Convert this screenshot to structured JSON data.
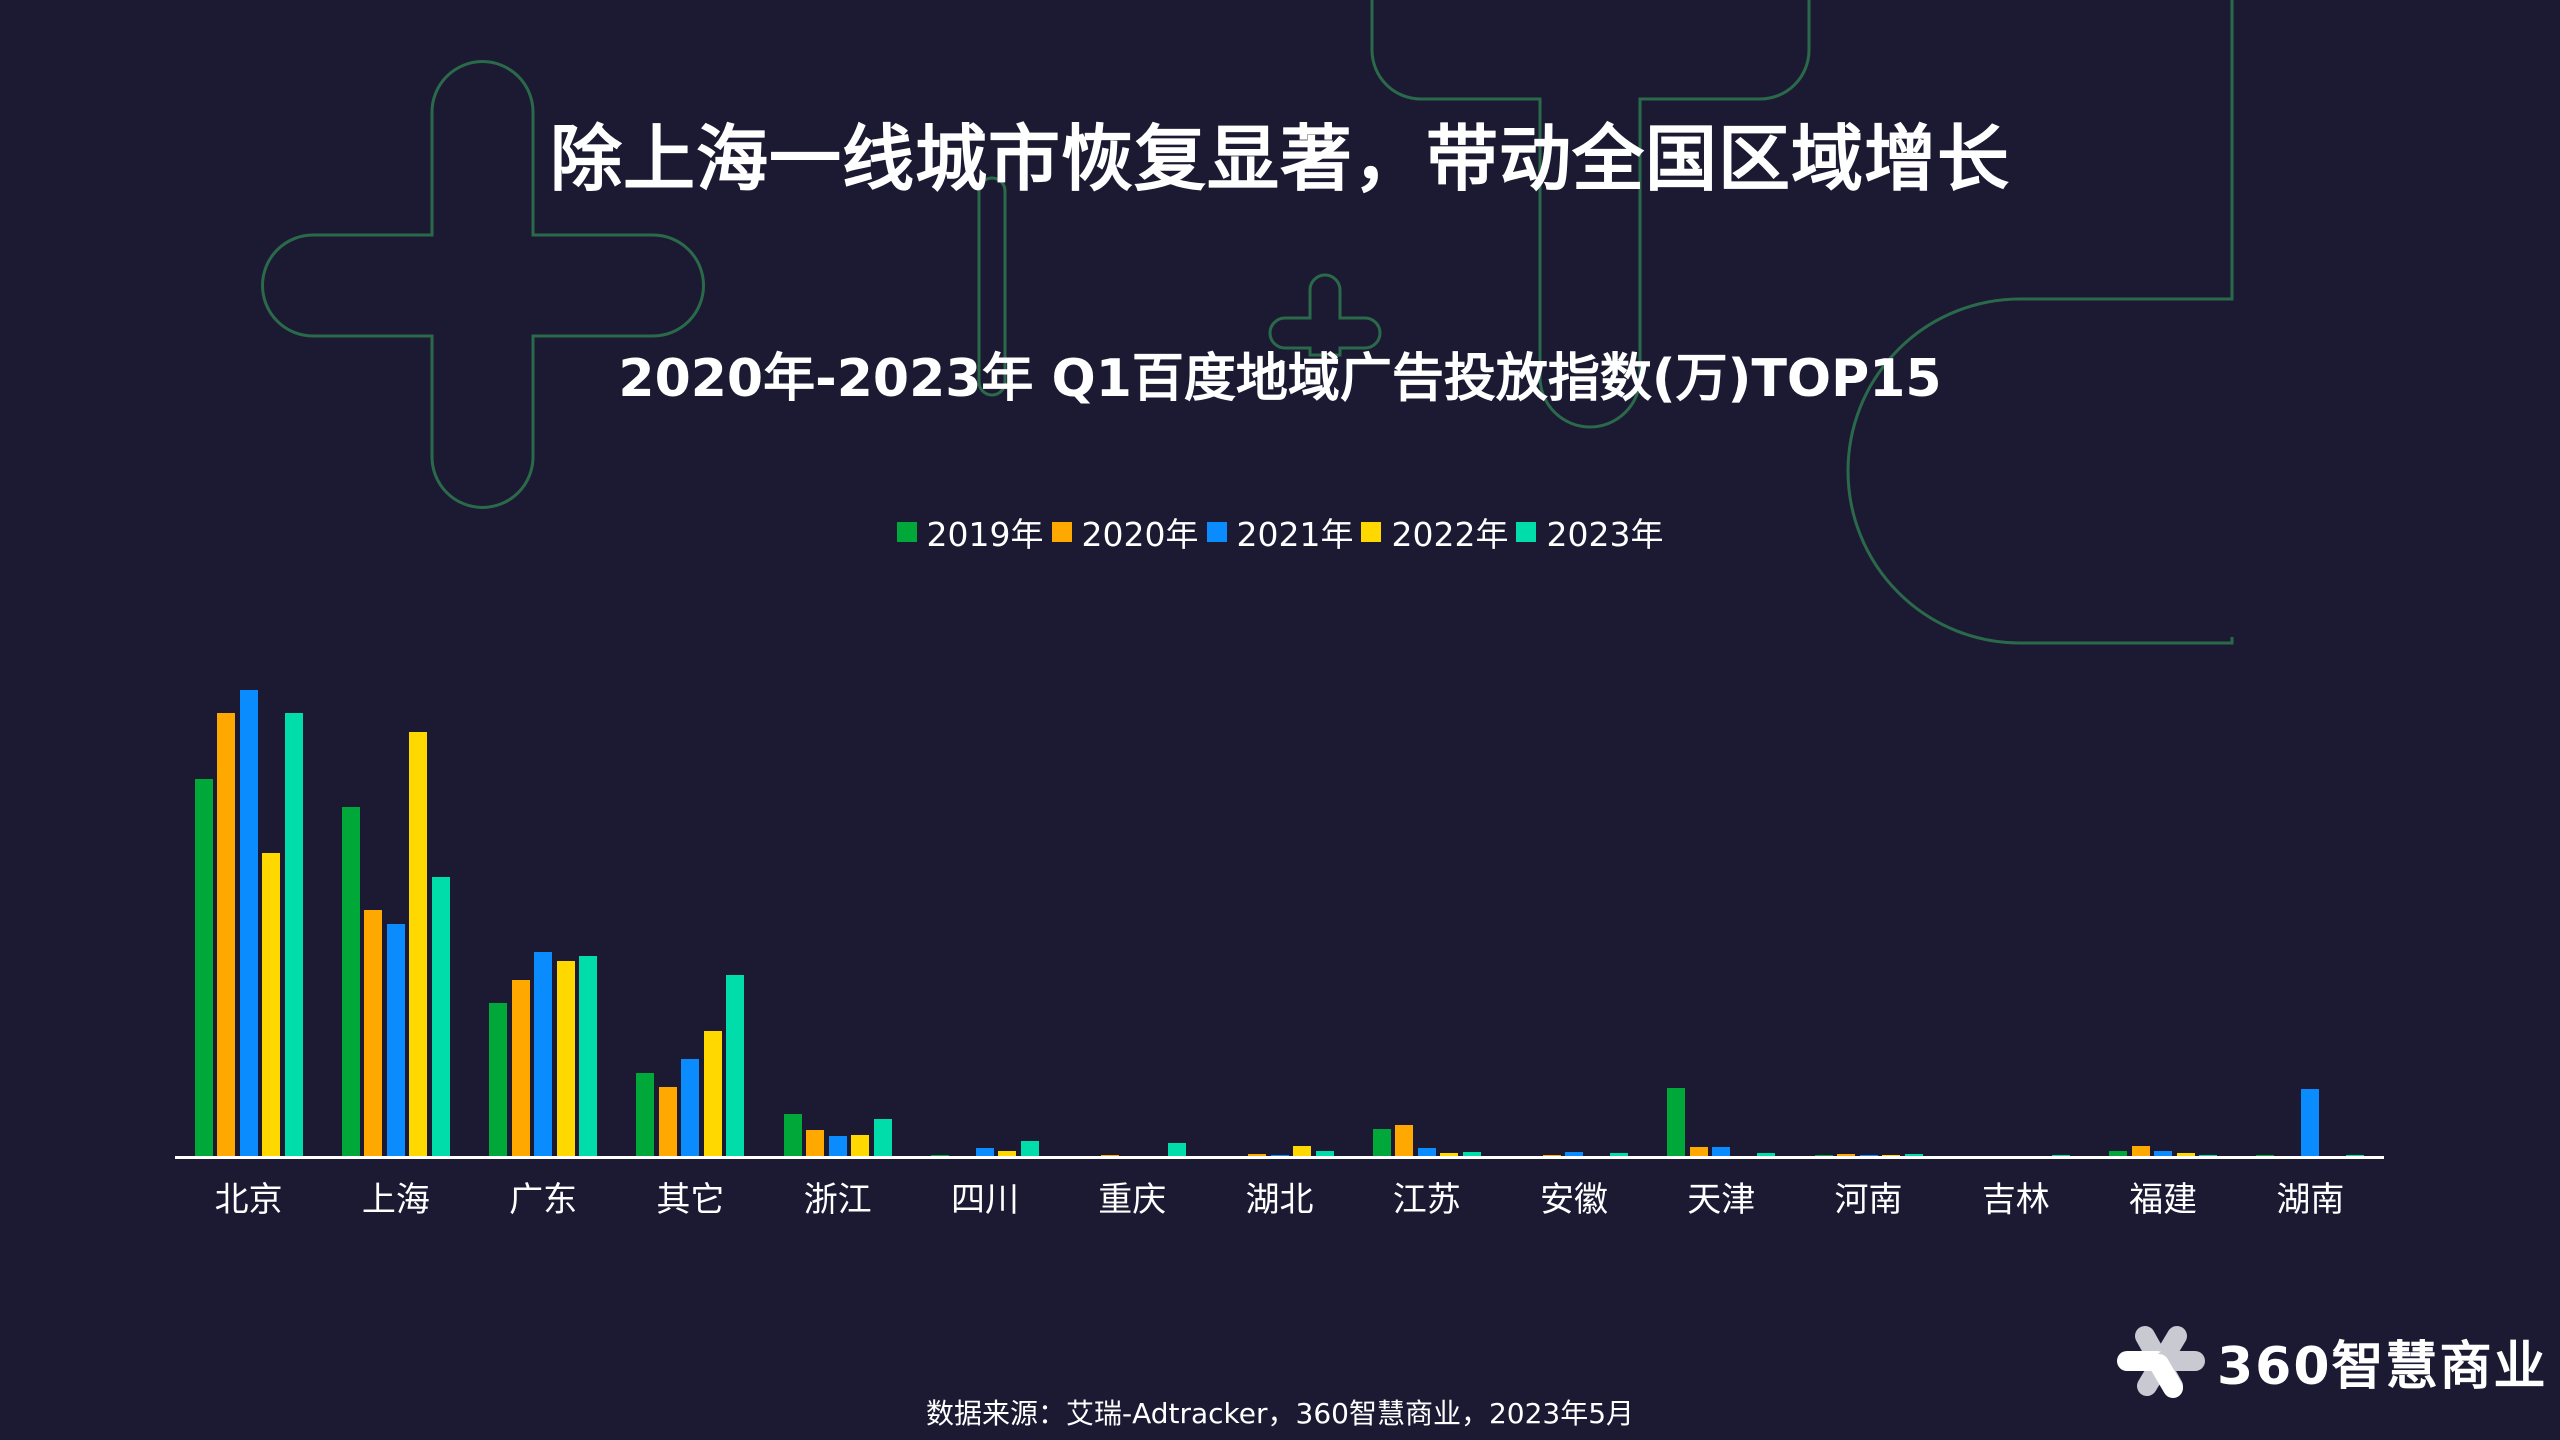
{
  "title": "除上海一线城市恢复显著，带动全国区域增长",
  "subtitle": "2020年-2023年 Q1百度地域广告投放指数(万)TOP15",
  "legend": [
    {
      "label": "2019年",
      "color": "#00a83a"
    },
    {
      "label": "2020年",
      "color": "#ffa800"
    },
    {
      "label": "2021年",
      "color": "#0a8cff"
    },
    {
      "label": "2022年",
      "color": "#ffd800"
    },
    {
      "label": "2023年",
      "color": "#00dcaa"
    }
  ],
  "footer": {
    "source": "数据来源：艾瑞-Adtracker，360智慧商业，2023年5月"
  },
  "logo": {
    "text": "360智慧商业",
    "icon": "360-pinwheel-icon"
  },
  "chart_data": {
    "type": "bar",
    "title": "2020年-2023年 Q1百度地域广告投放指数(万)TOP15",
    "xlabel": "",
    "ylabel": "",
    "ylim": [
      0,
      100
    ],
    "grid": false,
    "legend_position": "top",
    "value_note": "relative index estimated from bar heights (no y-axis labels shown); tallest bar = 100",
    "categories": [
      "北京",
      "上海",
      "广东",
      "其它",
      "浙江",
      "四川",
      "重庆",
      "湖北",
      "江苏",
      "安徽",
      "天津",
      "河南",
      "吉林",
      "福建",
      "湖南"
    ],
    "series": [
      {
        "name": "2019年",
        "color": "#00a83a",
        "values": [
          81,
          75,
          33,
          18,
          9.2,
          0.4,
          0.2,
          0.2,
          6.0,
          0.2,
          14.8,
          0.4,
          0.2,
          1.3,
          0.4
        ]
      },
      {
        "name": "2020年",
        "color": "#ffa800",
        "values": [
          95,
          53,
          38,
          15,
          5.8,
          0.2,
          0.4,
          0.6,
          6.9,
          0.4,
          2.1,
          0.6,
          0.0,
          2.4,
          0.2
        ]
      },
      {
        "name": "2021年",
        "color": "#0a8cff",
        "values": [
          100,
          50,
          44,
          21,
          4.5,
          1.9,
          0.2,
          0.4,
          1.9,
          1.1,
          2.1,
          0.4,
          0.0,
          1.3,
          14.6
        ]
      },
      {
        "name": "2022年",
        "color": "#ffd800",
        "values": [
          65,
          91,
          42,
          27,
          4.7,
          1.3,
          0.2,
          2.4,
          0.9,
          0.2,
          0.0,
          0.4,
          0.0,
          0.9,
          0.2
        ]
      },
      {
        "name": "2023年",
        "color": "#00dcaa",
        "values": [
          95,
          60,
          43,
          39,
          8.1,
          3.4,
          3.0,
          1.3,
          1.1,
          0.9,
          0.9,
          0.6,
          0.4,
          0.4,
          0.4
        ]
      }
    ]
  }
}
